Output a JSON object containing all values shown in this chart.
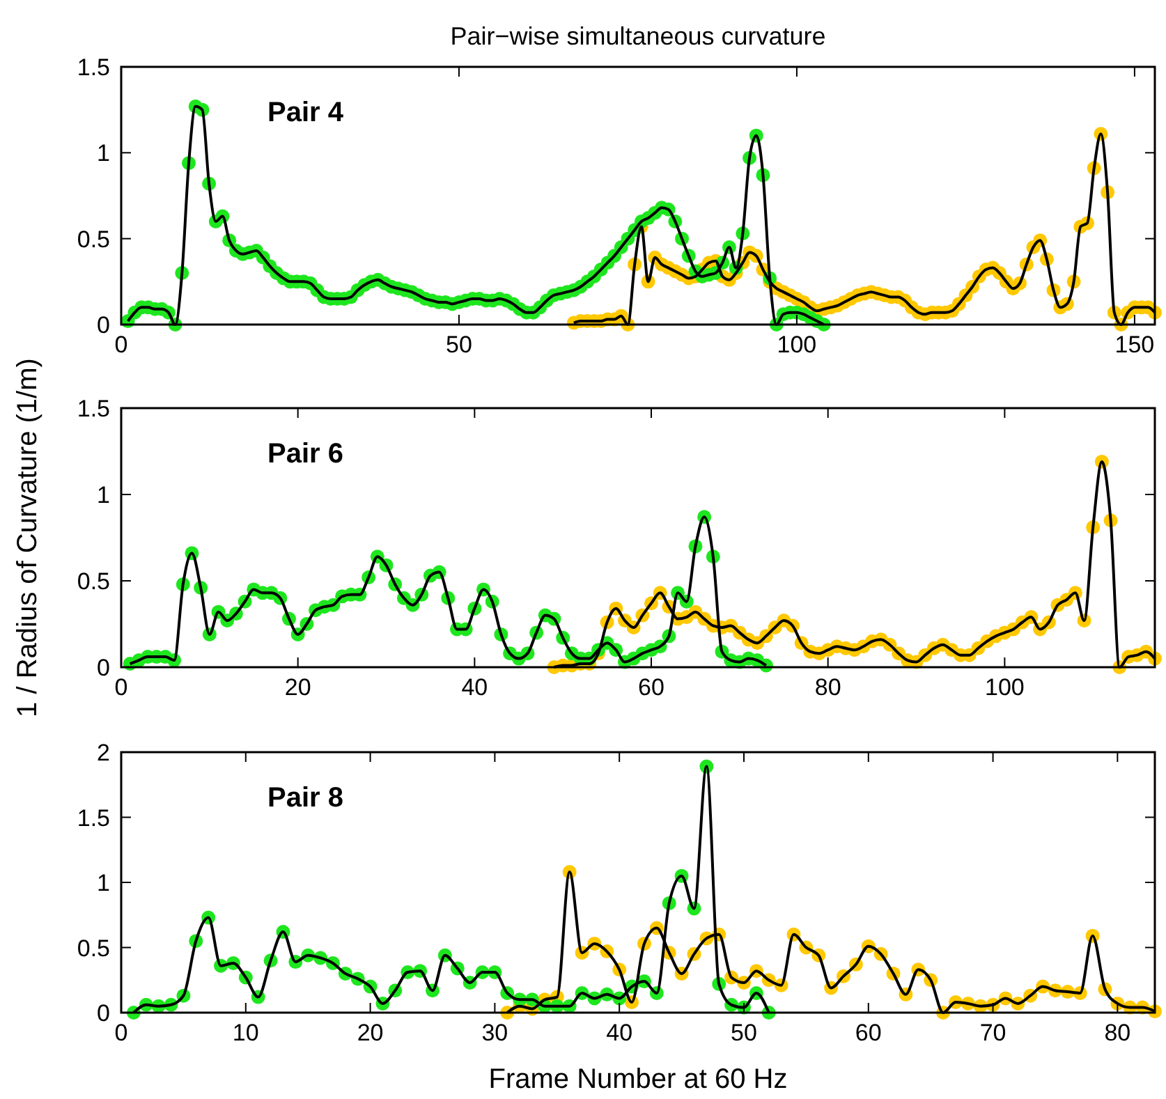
{
  "chart_data": [
    {
      "type": "scatter",
      "title": "Pair−wise simultaneous curvature",
      "annotations": [
        "Pair 4"
      ],
      "xlim": [
        0,
        153
      ],
      "xticks": [
        0,
        50,
        100,
        150
      ],
      "ylim": [
        0,
        1.5
      ],
      "yticks": [
        0,
        0.5,
        1,
        1.5
      ],
      "grid": false,
      "series": [
        {
          "marker": "circle",
          "color": "#1ee61e",
          "x": [
            1,
            2,
            3,
            4,
            5,
            6,
            7,
            8,
            9,
            10,
            11,
            12,
            13,
            14,
            15,
            16,
            17,
            18,
            19,
            20,
            21,
            22,
            23,
            24,
            25,
            26,
            27,
            28,
            29,
            30,
            31,
            32,
            33,
            34,
            35,
            36,
            37,
            38,
            39,
            40,
            41,
            42,
            43,
            44,
            45,
            46,
            47,
            48,
            49,
            50,
            51,
            52,
            53,
            54,
            55,
            56,
            57,
            58,
            59,
            60,
            61,
            62,
            63,
            64,
            65,
            66,
            67,
            68,
            69,
            70,
            71,
            72,
            73,
            74,
            75,
            76,
            77,
            78,
            79,
            80,
            81,
            82,
            83,
            84,
            85,
            86,
            87,
            88,
            89,
            90,
            91,
            92,
            93,
            94,
            95,
            96,
            97,
            98,
            99,
            100,
            101,
            102,
            103,
            104
          ],
          "values": [
            0.02,
            0.07,
            0.1,
            0.1,
            0.09,
            0.09,
            0.07,
            0.0,
            0.3,
            0.94,
            1.27,
            1.25,
            0.82,
            0.6,
            0.63,
            0.49,
            0.43,
            0.41,
            0.42,
            0.43,
            0.39,
            0.34,
            0.3,
            0.27,
            0.25,
            0.25,
            0.25,
            0.24,
            0.2,
            0.16,
            0.15,
            0.15,
            0.15,
            0.16,
            0.2,
            0.23,
            0.25,
            0.26,
            0.24,
            0.22,
            0.21,
            0.2,
            0.19,
            0.17,
            0.15,
            0.14,
            0.13,
            0.13,
            0.12,
            0.13,
            0.14,
            0.15,
            0.15,
            0.14,
            0.14,
            0.15,
            0.14,
            0.12,
            0.09,
            0.07,
            0.07,
            0.1,
            0.14,
            0.17,
            0.18,
            0.19,
            0.2,
            0.22,
            0.25,
            0.28,
            0.32,
            0.36,
            0.4,
            0.45,
            0.5,
            0.55,
            0.6,
            0.62,
            0.65,
            0.68,
            0.67,
            0.6,
            0.5,
            0.4,
            0.31,
            0.28,
            0.29,
            0.3,
            0.36,
            0.45,
            0.33,
            0.53,
            0.97,
            1.1,
            0.87,
            0.27,
            0.0,
            0.06,
            0.07,
            0.07,
            0.06,
            0.04,
            0.02,
            0.0
          ]
        },
        {
          "marker": "circle",
          "color": "#ffc800",
          "x": [
            67,
            68,
            69,
            70,
            71,
            72,
            73,
            74,
            75,
            76,
            77,
            78,
            79,
            80,
            81,
            82,
            83,
            84,
            85,
            86,
            87,
            88,
            89,
            90,
            91,
            92,
            93,
            94,
            95,
            96,
            97,
            98,
            99,
            100,
            101,
            102,
            103,
            104,
            105,
            106,
            107,
            108,
            109,
            110,
            111,
            112,
            113,
            114,
            115,
            116,
            117,
            118,
            119,
            120,
            121,
            122,
            123,
            124,
            125,
            126,
            127,
            128,
            129,
            130,
            131,
            132,
            133,
            134,
            135,
            136,
            137,
            138,
            139,
            140,
            141,
            142,
            143,
            144,
            145,
            146,
            147,
            148,
            149,
            150,
            151,
            152,
            153
          ],
          "values": [
            0.01,
            0.02,
            0.02,
            0.02,
            0.02,
            0.03,
            0.03,
            0.05,
            0.0,
            0.35,
            0.57,
            0.25,
            0.39,
            0.35,
            0.33,
            0.31,
            0.29,
            0.27,
            0.28,
            0.32,
            0.36,
            0.37,
            0.28,
            0.26,
            0.3,
            0.36,
            0.42,
            0.4,
            0.32,
            0.25,
            0.21,
            0.19,
            0.17,
            0.15,
            0.13,
            0.1,
            0.08,
            0.09,
            0.1,
            0.11,
            0.13,
            0.15,
            0.17,
            0.18,
            0.19,
            0.18,
            0.17,
            0.16,
            0.16,
            0.14,
            0.1,
            0.07,
            0.06,
            0.07,
            0.07,
            0.07,
            0.08,
            0.12,
            0.17,
            0.22,
            0.28,
            0.32,
            0.33,
            0.3,
            0.25,
            0.21,
            0.24,
            0.35,
            0.45,
            0.49,
            0.38,
            0.2,
            0.1,
            0.12,
            0.25,
            0.57,
            0.59,
            0.91,
            1.11,
            0.77,
            0.07,
            0.0,
            0.07,
            0.1,
            0.1,
            0.1,
            0.07
          ]
        },
        {
          "type": "line",
          "color": "#000000",
          "x": [
            1,
            2,
            3,
            4,
            5,
            6,
            7,
            8,
            9,
            10,
            11,
            12,
            13,
            14,
            15,
            16,
            17,
            18,
            19,
            20,
            21,
            22,
            23,
            24,
            25,
            26,
            27,
            28,
            29,
            30,
            31,
            32,
            33,
            34,
            35,
            36,
            37,
            38,
            39,
            40,
            41,
            42,
            43,
            44,
            45,
            46,
            47,
            48,
            49,
            50,
            51,
            52,
            53,
            54,
            55,
            56,
            57,
            58,
            59,
            60,
            61,
            62,
            63,
            64,
            65,
            66,
            67,
            68,
            69,
            70,
            71,
            72,
            73,
            74,
            75,
            76,
            77,
            78,
            79,
            80,
            81,
            82,
            83,
            84,
            85,
            86,
            87,
            88,
            89,
            90,
            91,
            92,
            93,
            94,
            95,
            96,
            97,
            98,
            99,
            100,
            101,
            102,
            103,
            104
          ],
          "values": [
            0.02,
            0.07,
            0.1,
            0.1,
            0.09,
            0.09,
            0.07,
            0.0,
            0.3,
            0.94,
            1.27,
            1.25,
            0.82,
            0.6,
            0.63,
            0.49,
            0.43,
            0.41,
            0.42,
            0.43,
            0.39,
            0.34,
            0.3,
            0.27,
            0.25,
            0.25,
            0.25,
            0.24,
            0.2,
            0.16,
            0.15,
            0.15,
            0.15,
            0.16,
            0.2,
            0.23,
            0.25,
            0.26,
            0.24,
            0.22,
            0.21,
            0.2,
            0.19,
            0.17,
            0.15,
            0.14,
            0.13,
            0.13,
            0.12,
            0.13,
            0.14,
            0.15,
            0.15,
            0.14,
            0.14,
            0.15,
            0.14,
            0.12,
            0.09,
            0.07,
            0.07,
            0.1,
            0.14,
            0.17,
            0.18,
            0.19,
            0.2,
            0.22,
            0.25,
            0.28,
            0.32,
            0.36,
            0.4,
            0.45,
            0.5,
            0.55,
            0.6,
            0.62,
            0.65,
            0.68,
            0.67,
            0.6,
            0.5,
            0.4,
            0.31,
            0.28,
            0.29,
            0.3,
            0.36,
            0.45,
            0.33,
            0.53,
            0.97,
            1.1,
            0.87,
            0.27,
            0.0,
            0.06,
            0.07,
            0.07,
            0.06,
            0.04,
            0.02,
            0.0
          ]
        },
        {
          "type": "line",
          "color": "#000000",
          "x": [
            67,
            68,
            69,
            70,
            71,
            72,
            73,
            74,
            75,
            76,
            77,
            78,
            79,
            80,
            81,
            82,
            83,
            84,
            85,
            86,
            87,
            88,
            89,
            90,
            91,
            92,
            93,
            94,
            95,
            96,
            97,
            98,
            99,
            100,
            101,
            102,
            103,
            104,
            105,
            106,
            107,
            108,
            109,
            110,
            111,
            112,
            113,
            114,
            115,
            116,
            117,
            118,
            119,
            120,
            121,
            122,
            123,
            124,
            125,
            126,
            127,
            128,
            129,
            130,
            131,
            132,
            133,
            134,
            135,
            136,
            137,
            138,
            139,
            140,
            141,
            142,
            143,
            144,
            145,
            146,
            147,
            148,
            149,
            150,
            151,
            152,
            153
          ],
          "values": [
            0.01,
            0.02,
            0.02,
            0.02,
            0.02,
            0.03,
            0.03,
            0.05,
            0.0,
            0.35,
            0.57,
            0.25,
            0.39,
            0.35,
            0.33,
            0.31,
            0.29,
            0.27,
            0.28,
            0.32,
            0.36,
            0.37,
            0.28,
            0.26,
            0.3,
            0.36,
            0.42,
            0.4,
            0.32,
            0.25,
            0.21,
            0.19,
            0.17,
            0.15,
            0.13,
            0.1,
            0.08,
            0.09,
            0.1,
            0.11,
            0.13,
            0.15,
            0.17,
            0.18,
            0.19,
            0.18,
            0.17,
            0.16,
            0.16,
            0.14,
            0.1,
            0.07,
            0.06,
            0.07,
            0.07,
            0.07,
            0.08,
            0.12,
            0.17,
            0.22,
            0.28,
            0.32,
            0.33,
            0.3,
            0.25,
            0.21,
            0.24,
            0.35,
            0.45,
            0.49,
            0.38,
            0.2,
            0.1,
            0.12,
            0.25,
            0.57,
            0.59,
            0.91,
            1.11,
            0.77,
            0.07,
            0.0,
            0.07,
            0.1,
            0.1,
            0.1,
            0.07
          ]
        }
      ]
    },
    {
      "type": "scatter",
      "ylabel": "1 / Radius of Curvature (1/m)",
      "annotations": [
        "Pair 6"
      ],
      "xlim": [
        0,
        117
      ],
      "xticks": [
        0,
        20,
        40,
        60,
        80,
        100
      ],
      "ylim": [
        0,
        1.5
      ],
      "yticks": [
        0,
        0.5,
        1,
        1.5
      ],
      "grid": false,
      "series": [
        {
          "marker": "circle",
          "color": "#1ee61e",
          "x": [
            1,
            2,
            3,
            4,
            5,
            6,
            7,
            8,
            9,
            10,
            11,
            12,
            13,
            14,
            15,
            16,
            17,
            18,
            19,
            20,
            21,
            22,
            23,
            24,
            25,
            26,
            27,
            28,
            29,
            30,
            31,
            32,
            33,
            34,
            35,
            36,
            37,
            38,
            39,
            40,
            41,
            42,
            43,
            44,
            45,
            46,
            47,
            48,
            49,
            50,
            51,
            52,
            53,
            54,
            55,
            56,
            57,
            58,
            59,
            60,
            61,
            62,
            63,
            64,
            65,
            66,
            67,
            68,
            69,
            70,
            71,
            72,
            73
          ],
          "values": [
            0.02,
            0.04,
            0.06,
            0.06,
            0.06,
            0.04,
            0.48,
            0.66,
            0.46,
            0.19,
            0.32,
            0.27,
            0.31,
            0.38,
            0.45,
            0.43,
            0.43,
            0.4,
            0.28,
            0.19,
            0.25,
            0.33,
            0.35,
            0.36,
            0.41,
            0.42,
            0.42,
            0.52,
            0.64,
            0.59,
            0.48,
            0.4,
            0.36,
            0.42,
            0.53,
            0.55,
            0.4,
            0.22,
            0.22,
            0.34,
            0.45,
            0.38,
            0.19,
            0.08,
            0.05,
            0.08,
            0.2,
            0.3,
            0.28,
            0.17,
            0.08,
            0.05,
            0.05,
            0.1,
            0.14,
            0.1,
            0.03,
            0.05,
            0.08,
            0.1,
            0.12,
            0.18,
            0.43,
            0.38,
            0.7,
            0.87,
            0.64,
            0.09,
            0.04,
            0.03,
            0.05,
            0.04,
            0.01
          ]
        },
        {
          "marker": "circle",
          "color": "#ffc800",
          "x": [
            49,
            50,
            51,
            52,
            53,
            54,
            55,
            56,
            57,
            58,
            59,
            60,
            61,
            62,
            63,
            64,
            65,
            66,
            67,
            68,
            69,
            70,
            71,
            72,
            73,
            74,
            75,
            76,
            77,
            78,
            79,
            80,
            81,
            82,
            83,
            84,
            85,
            86,
            87,
            88,
            89,
            90,
            91,
            92,
            93,
            94,
            95,
            96,
            97,
            98,
            99,
            100,
            101,
            102,
            103,
            104,
            105,
            106,
            107,
            108,
            109,
            110,
            111,
            112,
            113,
            114,
            115,
            116,
            117
          ],
          "values": [
            0.0,
            0.01,
            0.01,
            0.02,
            0.02,
            0.08,
            0.26,
            0.34,
            0.27,
            0.23,
            0.3,
            0.37,
            0.43,
            0.35,
            0.28,
            0.29,
            0.32,
            0.28,
            0.24,
            0.23,
            0.24,
            0.2,
            0.16,
            0.14,
            0.18,
            0.23,
            0.27,
            0.24,
            0.14,
            0.09,
            0.08,
            0.1,
            0.12,
            0.11,
            0.1,
            0.12,
            0.15,
            0.16,
            0.13,
            0.08,
            0.04,
            0.03,
            0.07,
            0.11,
            0.13,
            0.1,
            0.07,
            0.07,
            0.11,
            0.15,
            0.18,
            0.2,
            0.22,
            0.26,
            0.29,
            0.22,
            0.26,
            0.36,
            0.39,
            0.43,
            0.27,
            0.81,
            1.19,
            0.85,
            0.0,
            0.06,
            0.07,
            0.09,
            0.05
          ]
        },
        {
          "type": "line",
          "color": "#000000",
          "x": [
            1,
            2,
            3,
            4,
            5,
            6,
            7,
            8,
            9,
            10,
            11,
            12,
            13,
            14,
            15,
            16,
            17,
            18,
            19,
            20,
            21,
            22,
            23,
            24,
            25,
            26,
            27,
            28,
            29,
            30,
            31,
            32,
            33,
            34,
            35,
            36,
            37,
            38,
            39,
            40,
            41,
            42,
            43,
            44,
            45,
            46,
            47,
            48,
            49,
            50,
            51,
            52,
            53,
            54,
            55,
            56,
            57,
            58,
            59,
            60,
            61,
            62,
            63,
            64,
            65,
            66,
            67,
            68,
            69,
            70,
            71,
            72,
            73
          ],
          "values": [
            0.02,
            0.04,
            0.06,
            0.06,
            0.06,
            0.04,
            0.48,
            0.66,
            0.46,
            0.19,
            0.32,
            0.27,
            0.31,
            0.38,
            0.45,
            0.43,
            0.43,
            0.4,
            0.28,
            0.19,
            0.25,
            0.33,
            0.35,
            0.36,
            0.41,
            0.42,
            0.42,
            0.52,
            0.64,
            0.59,
            0.48,
            0.4,
            0.36,
            0.42,
            0.53,
            0.55,
            0.4,
            0.22,
            0.22,
            0.34,
            0.45,
            0.38,
            0.19,
            0.08,
            0.05,
            0.08,
            0.2,
            0.3,
            0.28,
            0.17,
            0.08,
            0.05,
            0.05,
            0.1,
            0.14,
            0.1,
            0.03,
            0.05,
            0.08,
            0.1,
            0.12,
            0.18,
            0.43,
            0.38,
            0.7,
            0.87,
            0.64,
            0.09,
            0.04,
            0.03,
            0.05,
            0.04,
            0.01
          ]
        },
        {
          "type": "line",
          "color": "#000000",
          "x": [
            49,
            50,
            51,
            52,
            53,
            54,
            55,
            56,
            57,
            58,
            59,
            60,
            61,
            62,
            63,
            64,
            65,
            66,
            67,
            68,
            69,
            70,
            71,
            72,
            73,
            74,
            75,
            76,
            77,
            78,
            79,
            80,
            81,
            82,
            83,
            84,
            85,
            86,
            87,
            88,
            89,
            90,
            91,
            92,
            93,
            94,
            95,
            96,
            97,
            98,
            99,
            100,
            101,
            102,
            103,
            104,
            105,
            106,
            107,
            108,
            109,
            110,
            111,
            112,
            113,
            114,
            115,
            116,
            117
          ],
          "values": [
            0.0,
            0.01,
            0.01,
            0.02,
            0.02,
            0.08,
            0.26,
            0.34,
            0.27,
            0.23,
            0.3,
            0.37,
            0.43,
            0.35,
            0.28,
            0.29,
            0.32,
            0.28,
            0.24,
            0.23,
            0.24,
            0.2,
            0.16,
            0.14,
            0.18,
            0.23,
            0.27,
            0.24,
            0.14,
            0.09,
            0.08,
            0.1,
            0.12,
            0.11,
            0.1,
            0.12,
            0.15,
            0.16,
            0.13,
            0.08,
            0.04,
            0.03,
            0.07,
            0.11,
            0.13,
            0.1,
            0.07,
            0.07,
            0.11,
            0.15,
            0.18,
            0.2,
            0.22,
            0.26,
            0.29,
            0.22,
            0.26,
            0.36,
            0.39,
            0.43,
            0.27,
            0.81,
            1.19,
            0.85,
            0.0,
            0.06,
            0.07,
            0.09,
            0.05
          ]
        }
      ]
    },
    {
      "type": "scatter",
      "xlabel": "Frame Number at 60 Hz",
      "annotations": [
        "Pair 8"
      ],
      "xlim": [
        0,
        83
      ],
      "xticks": [
        0,
        10,
        20,
        30,
        40,
        50,
        60,
        70,
        80
      ],
      "ylim": [
        0,
        2
      ],
      "yticks": [
        0,
        0.5,
        1,
        1.5,
        2
      ],
      "grid": false,
      "series": [
        {
          "marker": "circle",
          "color": "#1ee61e",
          "x": [
            1,
            2,
            3,
            4,
            5,
            6,
            7,
            8,
            9,
            10,
            11,
            12,
            13,
            14,
            15,
            16,
            17,
            18,
            19,
            20,
            21,
            22,
            23,
            24,
            25,
            26,
            27,
            28,
            29,
            30,
            31,
            32,
            33,
            34,
            35,
            36,
            37,
            38,
            39,
            40,
            41,
            42,
            43,
            44,
            45,
            46,
            47,
            48,
            49,
            50,
            51,
            52
          ],
          "values": [
            0.0,
            0.06,
            0.05,
            0.06,
            0.13,
            0.55,
            0.73,
            0.36,
            0.38,
            0.27,
            0.12,
            0.4,
            0.62,
            0.39,
            0.44,
            0.42,
            0.38,
            0.3,
            0.26,
            0.2,
            0.07,
            0.17,
            0.31,
            0.32,
            0.17,
            0.44,
            0.34,
            0.23,
            0.31,
            0.31,
            0.15,
            0.1,
            0.1,
            0.05,
            0.05,
            0.05,
            0.15,
            0.11,
            0.14,
            0.11,
            0.2,
            0.24,
            0.15,
            0.84,
            1.05,
            0.8,
            1.89,
            0.22,
            0.06,
            0.04,
            0.15,
            0.0
          ]
        },
        {
          "marker": "circle",
          "color": "#ffc800",
          "x": [
            31,
            32,
            33,
            34,
            35,
            36,
            37,
            38,
            39,
            40,
            41,
            42,
            43,
            44,
            45,
            46,
            47,
            48,
            49,
            50,
            51,
            52,
            53,
            54,
            55,
            56,
            57,
            58,
            59,
            60,
            61,
            62,
            63,
            64,
            65,
            66,
            67,
            68,
            69,
            70,
            71,
            72,
            73,
            74,
            75,
            76,
            77,
            78,
            79,
            80,
            81,
            82,
            83
          ],
          "values": [
            0.0,
            0.05,
            0.03,
            0.1,
            0.12,
            1.08,
            0.46,
            0.53,
            0.47,
            0.33,
            0.08,
            0.53,
            0.65,
            0.46,
            0.3,
            0.45,
            0.57,
            0.6,
            0.27,
            0.23,
            0.32,
            0.25,
            0.21,
            0.6,
            0.5,
            0.44,
            0.19,
            0.28,
            0.37,
            0.51,
            0.45,
            0.3,
            0.14,
            0.33,
            0.25,
            0.0,
            0.08,
            0.07,
            0.05,
            0.06,
            0.11,
            0.07,
            0.13,
            0.2,
            0.17,
            0.16,
            0.15,
            0.59,
            0.18,
            0.07,
            0.04,
            0.04,
            0.01
          ]
        },
        {
          "type": "line",
          "color": "#000000",
          "x": [
            1,
            2,
            3,
            4,
            5,
            6,
            7,
            8,
            9,
            10,
            11,
            12,
            13,
            14,
            15,
            16,
            17,
            18,
            19,
            20,
            21,
            22,
            23,
            24,
            25,
            26,
            27,
            28,
            29,
            30,
            31,
            32,
            33,
            34,
            35,
            36,
            37,
            38,
            39,
            40,
            41,
            42,
            43,
            44,
            45,
            46,
            47,
            48,
            49,
            50,
            51,
            52
          ],
          "values": [
            0.0,
            0.06,
            0.05,
            0.06,
            0.13,
            0.55,
            0.73,
            0.36,
            0.38,
            0.27,
            0.12,
            0.4,
            0.62,
            0.39,
            0.44,
            0.42,
            0.38,
            0.3,
            0.26,
            0.2,
            0.07,
            0.17,
            0.31,
            0.32,
            0.17,
            0.44,
            0.34,
            0.23,
            0.31,
            0.31,
            0.15,
            0.1,
            0.1,
            0.05,
            0.05,
            0.05,
            0.15,
            0.11,
            0.14,
            0.11,
            0.2,
            0.24,
            0.15,
            0.84,
            1.05,
            0.8,
            1.89,
            0.22,
            0.06,
            0.04,
            0.15,
            0.0
          ]
        },
        {
          "type": "line",
          "color": "#000000",
          "x": [
            31,
            32,
            33,
            34,
            35,
            36,
            37,
            38,
            39,
            40,
            41,
            42,
            43,
            44,
            45,
            46,
            47,
            48,
            49,
            50,
            51,
            52,
            53,
            54,
            55,
            56,
            57,
            58,
            59,
            60,
            61,
            62,
            63,
            64,
            65,
            66,
            67,
            68,
            69,
            70,
            71,
            72,
            73,
            74,
            75,
            76,
            77,
            78,
            79,
            80,
            81,
            82,
            83
          ],
          "values": [
            0.0,
            0.05,
            0.03,
            0.1,
            0.12,
            1.08,
            0.46,
            0.53,
            0.47,
            0.33,
            0.08,
            0.53,
            0.65,
            0.46,
            0.3,
            0.45,
            0.57,
            0.6,
            0.27,
            0.23,
            0.32,
            0.25,
            0.21,
            0.6,
            0.5,
            0.44,
            0.19,
            0.28,
            0.37,
            0.51,
            0.45,
            0.3,
            0.14,
            0.33,
            0.25,
            0.0,
            0.08,
            0.07,
            0.05,
            0.06,
            0.11,
            0.07,
            0.13,
            0.2,
            0.17,
            0.16,
            0.15,
            0.59,
            0.18,
            0.07,
            0.04,
            0.04,
            0.01
          ]
        }
      ]
    }
  ]
}
